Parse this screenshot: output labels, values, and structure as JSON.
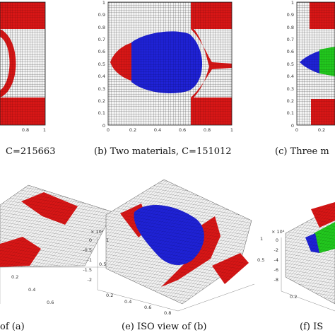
{
  "captions": {
    "a": "C=215663",
    "b": "(b) Two materials, C=151012",
    "c": "(c) Three m",
    "d": "of (a)",
    "e": "(e) ISO view of (b)",
    "f": "(f) IS"
  },
  "panel_a": {
    "xticks": [
      "0.8",
      "1"
    ]
  },
  "panel_b": {
    "xticks": [
      "0",
      "0.2",
      "0.4",
      "0.6",
      "0.8",
      "1"
    ],
    "yticks": [
      "1",
      "0.9",
      "0.8",
      "0.7",
      "0.6",
      "0.5",
      "0.4",
      "0.3",
      "0.2",
      "0.1",
      "0"
    ]
  },
  "panel_c": {
    "xticks": [
      "0",
      "0.2"
    ],
    "yticks": [
      "1",
      "0.9",
      "0.8",
      "0.7",
      "0.6",
      "0.5",
      "0.4",
      "0.3",
      "0.2",
      "0.1",
      "0"
    ]
  },
  "panel_d": {
    "ticks": [
      "1",
      "0.5",
      "0.2",
      "0.4",
      "0.6"
    ]
  },
  "panel_e": {
    "multiplier": "× 10⁵",
    "zticks": [
      "0",
      "-0.5",
      "-1",
      "-1.5",
      "-2"
    ],
    "xticks": [
      "0.2",
      "0.4",
      "0.6",
      "0.8"
    ],
    "yticks": [
      "1",
      "0.5"
    ]
  },
  "panel_f": {
    "multiplier": "× 10⁴",
    "zticks": [
      "0",
      "-2",
      "-4",
      "-6",
      "-8"
    ],
    "xticks": [
      "0.2"
    ]
  },
  "colors": {
    "red": "#d81616",
    "blue": "#1f22d6",
    "green": "#22c81e",
    "grid": "#3a3a3a",
    "background_cell": "#f4f4f4"
  }
}
